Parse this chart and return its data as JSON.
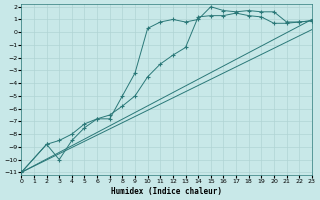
{
  "xlabel": "Humidex (Indice chaleur)",
  "background_color": "#c8e8e8",
  "grid_color": "#b0d4d4",
  "line_color": "#2a7878",
  "xlim": [
    0,
    23
  ],
  "ylim": [
    -11,
    2
  ],
  "xticks": [
    0,
    1,
    2,
    3,
    4,
    5,
    6,
    7,
    8,
    9,
    10,
    11,
    12,
    13,
    14,
    15,
    16,
    17,
    18,
    19,
    20,
    21,
    22,
    23
  ],
  "yticks": [
    2,
    1,
    0,
    -1,
    -2,
    -3,
    -4,
    -5,
    -6,
    -7,
    -8,
    -9,
    -10,
    -11
  ],
  "line1_x": [
    0,
    2,
    3,
    4,
    5,
    6,
    7,
    8,
    9,
    10,
    11,
    12,
    13,
    14,
    15,
    16,
    17,
    18,
    19,
    20,
    21,
    22,
    23
  ],
  "line1_y": [
    -11,
    -8.8,
    -10,
    -8.5,
    -7.5,
    -6.8,
    -6.8,
    -5.0,
    -3.2,
    0.3,
    0.8,
    1.0,
    0.8,
    1.0,
    2.0,
    1.7,
    1.6,
    1.7,
    1.6,
    1.6,
    0.8,
    0.8,
    0.9
  ],
  "line2_x": [
    0,
    2,
    3,
    4,
    5,
    6,
    7,
    8,
    9,
    10,
    11,
    12,
    13,
    14,
    15,
    16,
    17,
    18,
    19,
    20,
    21,
    22,
    23
  ],
  "line2_y": [
    -11,
    -8.8,
    -8.5,
    -8.0,
    -7.2,
    -6.8,
    -6.5,
    -5.8,
    -5.0,
    -3.5,
    -2.5,
    -1.8,
    -1.2,
    1.2,
    1.3,
    1.3,
    1.5,
    1.3,
    1.2,
    0.7,
    0.7,
    0.8,
    0.9
  ],
  "line3_x": [
    0,
    23
  ],
  "line3_y": [
    -11,
    1.0
  ],
  "line4_x": [
    0,
    23
  ],
  "line4_y": [
    -11,
    0.2
  ]
}
